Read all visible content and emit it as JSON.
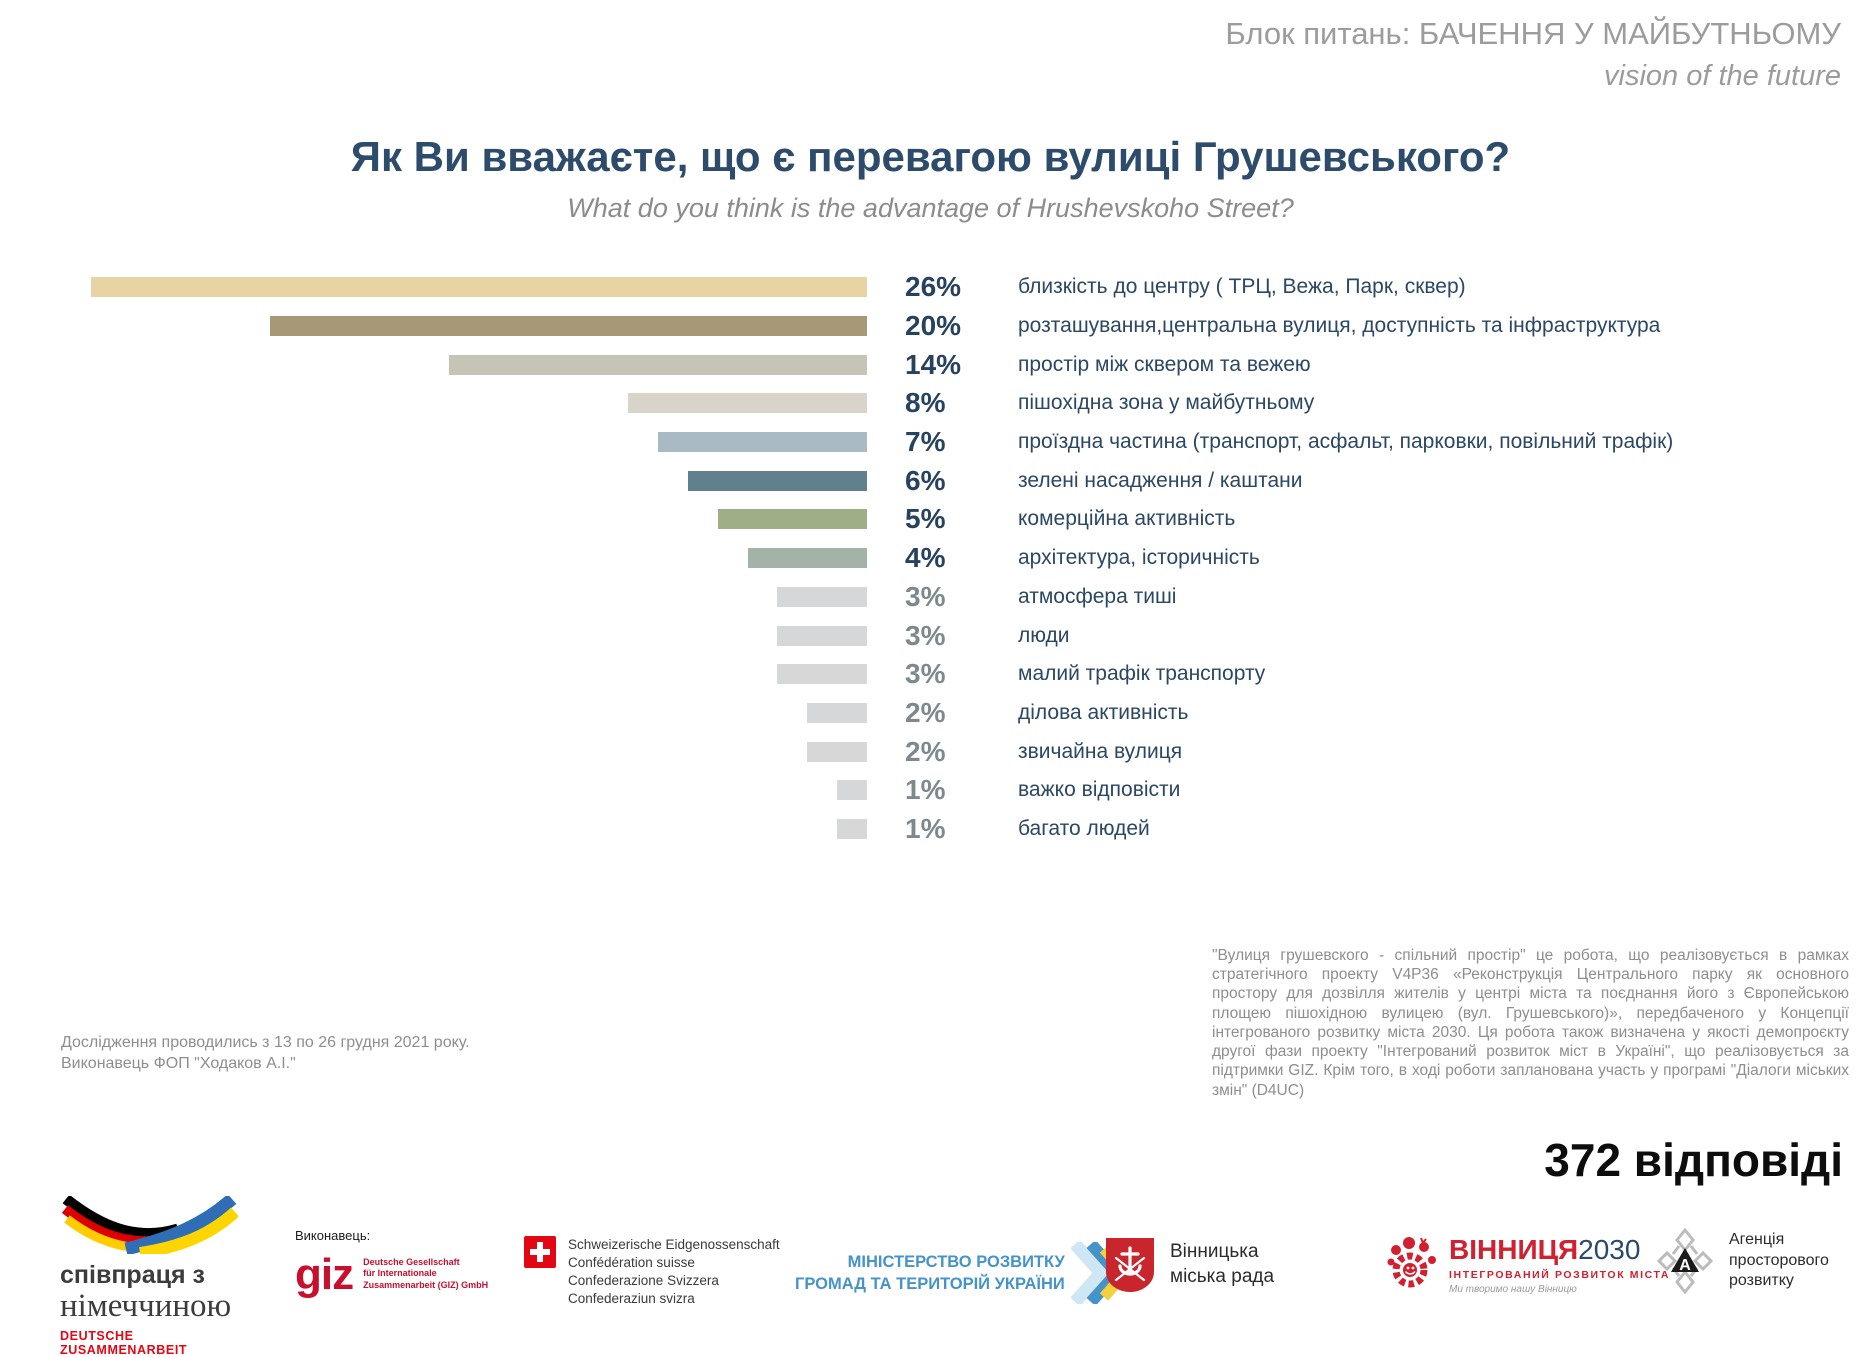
{
  "header": {
    "block_label": "Блок питань: БАЧЕННЯ У МАЙБУТНЬОМУ",
    "block_label_en": "vision of the future"
  },
  "title": {
    "uk": "Як Ви вважаєте, що є перевагою вулиці Грушевського?",
    "en": "What do you think is the advantage of Hrushevskoho Street?"
  },
  "chart_data": {
    "type": "bar",
    "orientation": "horizontal",
    "value_suffix": "%",
    "xlim": [
      0,
      26
    ],
    "grid": false,
    "legend": "none",
    "bars_right_aligned": true,
    "categories": [
      "близкість до центру ( ТРЦ, Вежа, Парк, сквер)",
      "розташування,центральна вулиця, доступність та інфраструктура",
      "простір між сквером та вежею",
      "пішохідна зона у майбутньому",
      "проїздна частина (транспорт, асфальт, парковки, повільний трафік)",
      "зелені насадження / каштани",
      "комерційна активність",
      "архітектура, історичність",
      "атмосфера тиші",
      "люди",
      "малий трафік транспорту",
      "ділова активність",
      "звичайна вулиця",
      "важко відповісти",
      "багато людей"
    ],
    "values": [
      26,
      20,
      14,
      8,
      7,
      6,
      5,
      4,
      3,
      3,
      3,
      2,
      2,
      1,
      1
    ],
    "value_labels": [
      "26%",
      "20%",
      "14%",
      "8%",
      "7%",
      "6%",
      "5%",
      "4%",
      "3%",
      "3%",
      "3%",
      "2%",
      "2%",
      "1%",
      "1%"
    ],
    "bar_colors": [
      "#e7d3a4",
      "#a79878",
      "#c6c4b4",
      "#d8d4c9",
      "#a9bac4",
      "#61808e",
      "#9fae86",
      "#a3b4a6",
      "#d5d7d8",
      "#d5d7d8",
      "#d5d7d8",
      "#d5d7d8",
      "#d5d7d8",
      "#d5d7d8",
      "#d5d7d8"
    ],
    "value_label_colors": [
      "#26425e",
      "#26425e",
      "#26425e",
      "#26425e",
      "#26425e",
      "#26425e",
      "#26425e",
      "#26425e",
      "#7e898f",
      "#7e898f",
      "#7e898f",
      "#7e898f",
      "#7e898f",
      "#7e898f",
      "#7e898f"
    ],
    "category_label_color": "#2b4763"
  },
  "notes": {
    "left_line1": "Дослідження проводились з 13 по 26 грудня 2021 року.",
    "left_line2": "Виконавець ФОП \"Ходаков А.І.\"",
    "right_paragraph": "\"Вулиця грушевского - спільний простір\" це робота, що реалізовується в рамках стратегічного проекту V4P36 «Реконструкція Центрального парку як основного простору для дозвілля жителів у центрі міста та поєднання його з Європейською площею пішохідною вулицею (вул. Грушевського)», передбаченого у Концепції інтегрованого розвитку міста 2030. Ця робота також  визначена у якості  демопроєкту другої фази проекту \"Інтегрований розвиток міст в Україні\", що реалізовується за підтримки GIZ. Крім того, в ході роботи запланована участь у програмі \"Діалоги міських змін\" (D4UC)"
  },
  "responses_total": "372 відповіді",
  "footer": {
    "german_cooperation": {
      "line1": "співпраця з",
      "line2": "німеччиною",
      "line3": "DEUTSCHE ZUSAMMENARBEIT"
    },
    "executor_label": "Виконавець:",
    "giz": {
      "wordmark": "giz",
      "sub1": "Deutsche Gesellschaft",
      "sub2": "für Internationale",
      "sub3": "Zusammenarbeit (GIZ) GmbH"
    },
    "swiss": {
      "line1": "Schweizerische Eidgenossenschaft",
      "line2": "Confédération suisse",
      "line3": "Confederazione Svizzera",
      "line4": "Confederaziun svizra"
    },
    "ministry": {
      "line1": "МІНІСТЕРСТВО РОЗВИТКУ",
      "line2": "ГРОМАД ТА ТЕРИТОРІЙ УКРАЇНИ"
    },
    "city_council": {
      "line1": "Вінницька",
      "line2": "міська рада"
    },
    "vin2030": {
      "word_red": "ВІННИЦЯ",
      "word_blue": "2030",
      "sub": "ІНТЕГРОВАНИЙ РОЗВИТОК МІСТА",
      "tagline": "Ми творимо нашу Вінницю"
    },
    "agency": {
      "line1": "Агенція",
      "line2": "просторового",
      "line3": "розвитку"
    }
  }
}
